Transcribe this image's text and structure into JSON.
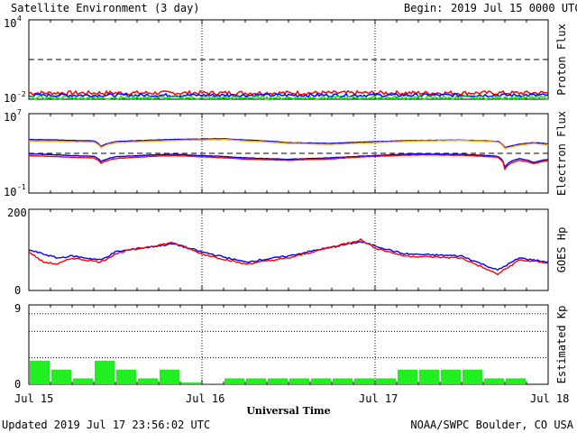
{
  "header": {
    "title": "Satellite Environment (3 day)",
    "begin_label": "Begin:",
    "begin_value": "2019 Jul 15 0000 UTC"
  },
  "footer": {
    "updated": "Updated 2019 Jul 17 23:56:02 UTC",
    "source": "NOAA/SWPC Boulder, CO USA"
  },
  "chart_data": [
    {
      "type": "line",
      "title": "Proton Flux",
      "ylabel": "Proton Flux",
      "yscale": "log",
      "ylim": [
        0.01,
        10000
      ],
      "ytick_labels": {
        "top": "10",
        "top_exp": "4",
        "bottom": "10",
        "bottom_exp": "-2"
      },
      "threshold": 10,
      "series": [
        {
          "color": "#ff0000",
          "level": 0.03,
          "noise": 0.15
        },
        {
          "color": "#0000ff",
          "level": 0.02,
          "noise": 0.12
        },
        {
          "color": "#00ee00",
          "level": 0.013,
          "noise": 0.12
        }
      ]
    },
    {
      "type": "line",
      "title": "Electron Flux",
      "ylabel": "Electron Flux",
      "yscale": "log",
      "ylim": [
        0.1,
        10000000
      ],
      "ytick_labels": {
        "top": "10",
        "top_exp": "7",
        "bottom": "10",
        "bottom_exp": "-1"
      },
      "threshold": 1000,
      "series": [
        {
          "color": "#0000ff",
          "hours": [
            0,
            6,
            9,
            10,
            12,
            20,
            27,
            30,
            36,
            42,
            48,
            54,
            60,
            65,
            66,
            70,
            72,
            78,
            84,
            90,
            96
          ],
          "values": [
            25000,
            20000,
            18000,
            5000,
            15000,
            25000,
            30000,
            22000,
            12000,
            10000,
            15000,
            20000,
            22000,
            16000,
            4000,
            12000,
            9000,
            16000,
            20000,
            22000,
            16000
          ]
        },
        {
          "color": "#ffa500",
          "hours": [
            0,
            6,
            9,
            10,
            12,
            20,
            27,
            30,
            36,
            42,
            48,
            54,
            60,
            65,
            66,
            70,
            72,
            78,
            84,
            90,
            96
          ],
          "values": [
            18000,
            15000,
            14000,
            4000,
            12000,
            20000,
            25000,
            18000,
            10000,
            8000,
            12000,
            18000,
            20000,
            14000,
            3000,
            10000,
            7000,
            14000,
            18000,
            20000,
            14000
          ]
        },
        {
          "color": "#0000ff",
          "hours": [
            0,
            6,
            9,
            10,
            12,
            20,
            24,
            30,
            36,
            42,
            48,
            54,
            60,
            65,
            66,
            68,
            70,
            72,
            78,
            84,
            90,
            96
          ],
          "values": [
            900,
            600,
            500,
            150,
            450,
            800,
            600,
            350,
            250,
            350,
            600,
            900,
            800,
            500,
            40,
            300,
            120,
            250,
            500,
            700,
            900,
            1000
          ]
        },
        {
          "color": "#ff0000",
          "hours": [
            0,
            6,
            9,
            10,
            12,
            20,
            24,
            30,
            36,
            42,
            48,
            54,
            60,
            65,
            66,
            68,
            70,
            72,
            78,
            84,
            90,
            96
          ],
          "values": [
            600,
            400,
            350,
            100,
            300,
            600,
            450,
            260,
            200,
            280,
            500,
            700,
            650,
            400,
            25,
            200,
            90,
            180,
            400,
            550,
            750,
            800
          ]
        }
      ]
    },
    {
      "type": "line",
      "title": "GOES Hp",
      "ylabel": "GOES Hp",
      "ylim": [
        0,
        200
      ],
      "ytick_labels": {
        "top": "200",
        "bottom": "0"
      },
      "series": [
        {
          "color": "#0000ff",
          "hours": [
            0,
            2,
            4,
            6,
            10,
            12,
            14,
            20,
            24,
            30,
            36,
            40,
            46,
            48,
            52,
            60,
            65,
            68,
            72,
            78,
            84,
            90,
            96
          ],
          "values": [
            100,
            90,
            80,
            85,
            75,
            95,
            100,
            115,
            95,
            70,
            85,
            100,
            120,
            110,
            90,
            85,
            50,
            80,
            70,
            85,
            100,
            110,
            105
          ]
        },
        {
          "color": "#ff0000",
          "hours": [
            0,
            2,
            4,
            6,
            10,
            12,
            14,
            20,
            24,
            30,
            36,
            40,
            46,
            48,
            52,
            60,
            65,
            68,
            72,
            78,
            84,
            90,
            96
          ],
          "values": [
            95,
            70,
            65,
            80,
            70,
            90,
            100,
            118,
            90,
            65,
            80,
            98,
            125,
            105,
            85,
            80,
            40,
            75,
            68,
            80,
            98,
            108,
            100
          ]
        }
      ]
    },
    {
      "type": "bar",
      "title": "Estimated Kp",
      "ylabel": "Estimated Kp",
      "ylim": [
        0,
        9
      ],
      "ytick_labels": {
        "top": "9",
        "bottom": "0"
      },
      "bar_color": "#22ee22",
      "values": [
        2.67,
        1.67,
        0.67,
        2.67,
        1.67,
        0.67,
        1.67,
        0.2,
        0.1,
        0.67,
        0.67,
        0.67,
        0.67,
        0.67,
        0.67,
        0.67,
        0.67,
        1.67,
        1.67,
        1.67,
        1.67,
        0.67,
        0.67,
        0
      ]
    }
  ],
  "x_axis": {
    "label": "Universal Time",
    "ticks": [
      "Jul 15",
      "Jul 16",
      "Jul 17",
      "Jul 18"
    ]
  }
}
